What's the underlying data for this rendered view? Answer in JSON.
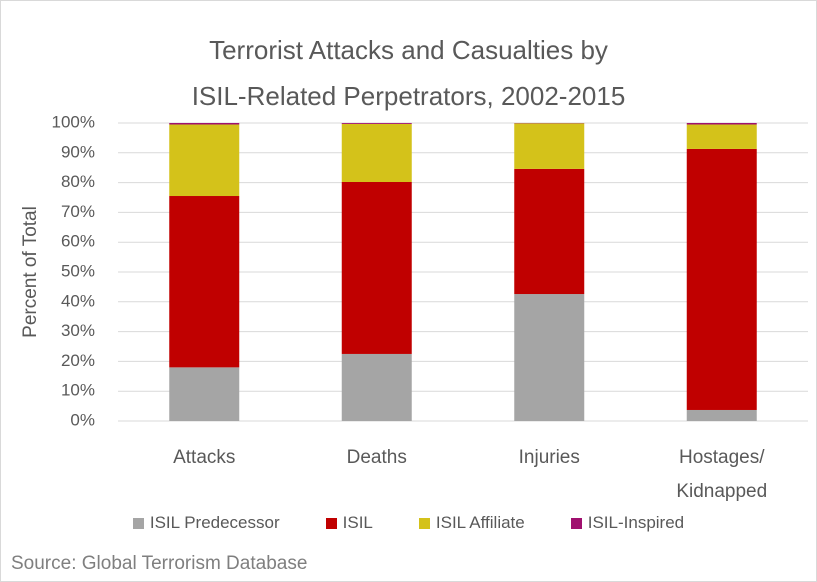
{
  "chart_data": {
    "type": "stacked_bar",
    "title": "Terrorist Attacks and Casualties by\nISIL-Related Perpetrators, 2002-2015",
    "y_label": "Percent of Total",
    "categories": [
      "Attacks",
      "Deaths",
      "Injuries",
      "Hostages/\nKidnapped"
    ],
    "series": [
      {
        "name": "ISIL Predecessor",
        "color": "#a5a5a5",
        "values": [
          18,
          22.5,
          42.6,
          3.7
        ]
      },
      {
        "name": "ISIL",
        "color": "#c00000",
        "values": [
          57.5,
          57.7,
          42,
          87.6
        ]
      },
      {
        "name": "ISIL Affiliate",
        "color": "#d4c21a",
        "values": [
          24,
          19.5,
          15.3,
          8.2
        ]
      },
      {
        "name": "ISIL-Inspired",
        "color": "#a0106f",
        "values": [
          0.5,
          0.3,
          0.1,
          0.5
        ]
      }
    ],
    "ylim": [
      0,
      100
    ],
    "yticks": [
      {
        "value": 0,
        "label": "0%"
      },
      {
        "value": 10,
        "label": "10%"
      },
      {
        "value": 20,
        "label": "20%"
      },
      {
        "value": 30,
        "label": "30%"
      },
      {
        "value": 40,
        "label": "40%"
      },
      {
        "value": 50,
        "label": "50%"
      },
      {
        "value": 60,
        "label": "60%"
      },
      {
        "value": 70,
        "label": "70%"
      },
      {
        "value": 80,
        "label": "80%"
      },
      {
        "value": 90,
        "label": "90%"
      },
      {
        "value": 100,
        "label": "100%"
      }
    ],
    "grid": true,
    "legend": "bottom",
    "source": "Source: Global Terrorism Database"
  }
}
